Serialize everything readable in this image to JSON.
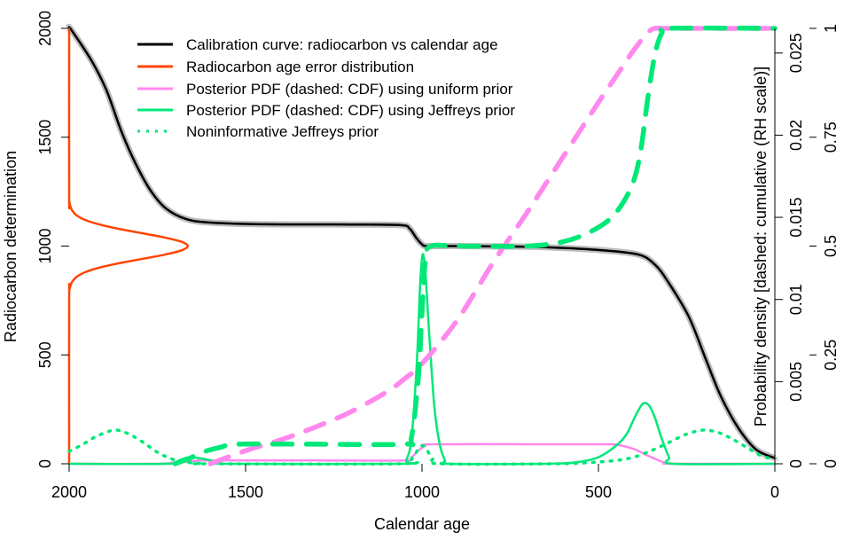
{
  "chart_data": {
    "type": "line",
    "xlabel": "Calendar age",
    "ylabel": "Radiocarbon determination",
    "ylabel_right": "Probability density [dashed: cumulative (RH scale)]",
    "xlim": [
      2000,
      0
    ],
    "ylim": [
      0,
      2000
    ],
    "ylim_right_density": [
      0,
      0.0265
    ],
    "ylim_right_cumulative": [
      0,
      1
    ],
    "x_ticks": [
      "2000",
      "1500",
      "1000",
      "500",
      "0"
    ],
    "x_tick_values": [
      2000,
      1500,
      1000,
      500,
      0
    ],
    "y_ticks": [
      "0",
      "500",
      "1000",
      "1500",
      "2000"
    ],
    "y_tick_values": [
      0,
      500,
      1000,
      1500,
      2000
    ],
    "density_ticks": [
      "0",
      "0.005",
      "0.01",
      "0.015",
      "0.02",
      "0.025"
    ],
    "density_tick_values": [
      0,
      0.005,
      0.01,
      0.015,
      0.02,
      0.025
    ],
    "cumulative_ticks": [
      "0",
      "0.25",
      "0.5",
      "0.75",
      "1"
    ],
    "cumulative_tick_values": [
      0,
      0.25,
      0.5,
      0.75,
      1
    ],
    "grid": false,
    "legend_position": "top",
    "legend": [
      {
        "label": "Calibration curve: radiocarbon vs calendar age",
        "color": "#000000",
        "style": "solid"
      },
      {
        "label": "Radiocarbon age error distribution",
        "color": "#ff4500",
        "style": "solid"
      },
      {
        "label": "Posterior PDF (dashed: CDF) using uniform prior",
        "color": "#ff88ee",
        "style": "solid"
      },
      {
        "label": "Posterior PDF (dashed: CDF) using Jeffreys prior",
        "color": "#00e878",
        "style": "solid"
      },
      {
        "label": "Noninformative Jeffreys prior",
        "color": "#00e878",
        "style": "dotted"
      }
    ],
    "series": {
      "calibration_curve": {
        "color": "#000000",
        "band_color": "#bbbbbb",
        "axis": "left",
        "points": [
          [
            2000,
            2000
          ],
          [
            1995,
            1996
          ],
          [
            1937,
            1853
          ],
          [
            1894,
            1715
          ],
          [
            1852,
            1527
          ],
          [
            1811,
            1377
          ],
          [
            1769,
            1255
          ],
          [
            1726,
            1173
          ],
          [
            1668,
            1124
          ],
          [
            1600,
            1108
          ],
          [
            1442,
            1100
          ],
          [
            1200,
            1099
          ],
          [
            1060,
            1096
          ],
          [
            1035,
            1080
          ],
          [
            1015,
            1035
          ],
          [
            1000,
            1008
          ],
          [
            985,
            1000
          ],
          [
            900,
            1000
          ],
          [
            750,
            998
          ],
          [
            638,
            994
          ],
          [
            500,
            982
          ],
          [
            387,
            961
          ],
          [
            340,
            915
          ],
          [
            304,
            839
          ],
          [
            244,
            676
          ],
          [
            194,
            473
          ],
          [
            153,
            310
          ],
          [
            103,
            163
          ],
          [
            53,
            65
          ],
          [
            3,
            28
          ],
          [
            0,
            27
          ]
        ]
      },
      "error_distribution": {
        "color": "#ff4500",
        "axis": "left",
        "points": [
          [
            2000,
            0
          ],
          [
            2000,
            760
          ],
          [
            1999,
            800
          ],
          [
            1996,
            820
          ],
          [
            1990,
            840
          ],
          [
            1978,
            860
          ],
          [
            1955,
            880
          ],
          [
            1916,
            900
          ],
          [
            1862,
            920
          ],
          [
            1796,
            940
          ],
          [
            1731,
            960
          ],
          [
            1682,
            980
          ],
          [
            1664,
            1000
          ],
          [
            1682,
            1020
          ],
          [
            1731,
            1040
          ],
          [
            1796,
            1060
          ],
          [
            1862,
            1080
          ],
          [
            1916,
            1100
          ],
          [
            1955,
            1120
          ],
          [
            1978,
            1140
          ],
          [
            1990,
            1160
          ],
          [
            1996,
            1180
          ],
          [
            1999,
            1200
          ],
          [
            2000,
            1240
          ],
          [
            2000,
            2000
          ]
        ]
      },
      "uniform_pdf": {
        "color": "#ff88ee",
        "axis": "density",
        "points": [
          [
            2000,
            0
          ],
          [
            1760,
            0
          ],
          [
            1700,
            8e-05
          ],
          [
            1640,
            0.00018
          ],
          [
            1600,
            0.0002
          ],
          [
            1300,
            0.0002
          ],
          [
            1050,
            0.0002
          ],
          [
            1030,
            0.0004
          ],
          [
            1010,
            0.0008
          ],
          [
            990,
            0.00112
          ],
          [
            970,
            0.00119
          ],
          [
            700,
            0.00119
          ],
          [
            480,
            0.00119
          ],
          [
            440,
            0.00113
          ],
          [
            400,
            0.0009
          ],
          [
            370,
            0.0006
          ],
          [
            340,
            0.0003
          ],
          [
            310,
            5e-05
          ],
          [
            290,
            0
          ],
          [
            0,
            0
          ]
        ]
      },
      "uniform_cdf": {
        "color": "#ff88ee",
        "axis": "cumulative",
        "points": [
          [
            1600,
            0
          ],
          [
            1500,
            0.03
          ],
          [
            1400,
            0.055
          ],
          [
            1300,
            0.085
          ],
          [
            1200,
            0.12
          ],
          [
            1100,
            0.165
          ],
          [
            1050,
            0.195
          ],
          [
            1000,
            0.23
          ],
          [
            900,
            0.33
          ],
          [
            800,
            0.46
          ],
          [
            700,
            0.58
          ],
          [
            600,
            0.705
          ],
          [
            500,
            0.83
          ],
          [
            450,
            0.89
          ],
          [
            400,
            0.95
          ],
          [
            360,
            0.99
          ],
          [
            340,
            1
          ],
          [
            300,
            1
          ],
          [
            0,
            1
          ]
        ]
      },
      "jeffreys_pdf": {
        "color": "#00e878",
        "axis": "density",
        "points": [
          [
            2000,
            0
          ],
          [
            1720,
            0
          ],
          [
            1690,
            0.0002
          ],
          [
            1660,
            0.0004
          ],
          [
            1620,
            0.0003
          ],
          [
            1580,
            0.0001
          ],
          [
            1550,
            0
          ],
          [
            1055,
            0
          ],
          [
            1045,
            0.0002
          ],
          [
            1030,
            0.0015
          ],
          [
            1015,
            0.006
          ],
          [
            1005,
            0.011
          ],
          [
            998,
            0.01276
          ],
          [
            990,
            0.0115
          ],
          [
            980,
            0.008
          ],
          [
            965,
            0.0035
          ],
          [
            950,
            0.0012
          ],
          [
            935,
            0.0002
          ],
          [
            925,
            0
          ],
          [
            650,
            0
          ],
          [
            560,
            0.0001
          ],
          [
            500,
            0.0004
          ],
          [
            450,
            0.0011
          ],
          [
            420,
            0.0018
          ],
          [
            400,
            0.0027
          ],
          [
            380,
            0.0035
          ],
          [
            369,
            0.0037
          ],
          [
            355,
            0.0035
          ],
          [
            340,
            0.0028
          ],
          [
            320,
            0.0015
          ],
          [
            300,
            0.0004
          ],
          [
            286,
            0
          ],
          [
            0,
            0
          ]
        ]
      },
      "jeffreys_cdf": {
        "color": "#00e878",
        "axis": "cumulative",
        "points": [
          [
            1700,
            0
          ],
          [
            1660,
            0.012
          ],
          [
            1620,
            0.027
          ],
          [
            1570,
            0.038
          ],
          [
            1520,
            0.045
          ],
          [
            1300,
            0.045
          ],
          [
            1050,
            0.045
          ],
          [
            1030,
            0.06
          ],
          [
            1010,
            0.2
          ],
          [
            1000,
            0.35
          ],
          [
            990,
            0.47
          ],
          [
            975,
            0.5
          ],
          [
            900,
            0.5
          ],
          [
            700,
            0.5
          ],
          [
            600,
            0.51
          ],
          [
            530,
            0.53
          ],
          [
            470,
            0.56
          ],
          [
            430,
            0.6
          ],
          [
            400,
            0.65
          ],
          [
            380,
            0.72
          ],
          [
            360,
            0.84
          ],
          [
            340,
            0.94
          ],
          [
            320,
            0.99
          ],
          [
            300,
            1
          ],
          [
            0,
            1
          ]
        ]
      },
      "jeffreys_prior": {
        "color": "#00e878",
        "axis": "density",
        "points": [
          [
            2000,
            0.00075
          ],
          [
            1960,
            0.0012
          ],
          [
            1920,
            0.0017
          ],
          [
            1870,
            0.00205
          ],
          [
            1830,
            0.0018
          ],
          [
            1790,
            0.0013
          ],
          [
            1750,
            0.0007
          ],
          [
            1710,
            0.0003
          ],
          [
            1670,
            0.0001
          ],
          [
            1630,
            2e-05
          ],
          [
            1600,
            0
          ],
          [
            1060,
            0
          ],
          [
            1030,
            0.0003
          ],
          [
            1010,
            0.0009
          ],
          [
            998,
            0.0011
          ],
          [
            985,
            0.0008
          ],
          [
            970,
            0.0003
          ],
          [
            950,
            0
          ],
          [
            620,
            0
          ],
          [
            520,
            8e-05
          ],
          [
            450,
            0.0002
          ],
          [
            400,
            0.0004
          ],
          [
            350,
            0.0008
          ],
          [
            300,
            0.0013
          ],
          [
            250,
            0.0018
          ],
          [
            203,
            0.00205
          ],
          [
            160,
            0.0019
          ],
          [
            120,
            0.0015
          ],
          [
            80,
            0.001
          ],
          [
            40,
            0.0005
          ],
          [
            0,
            0.00025
          ]
        ]
      }
    }
  }
}
